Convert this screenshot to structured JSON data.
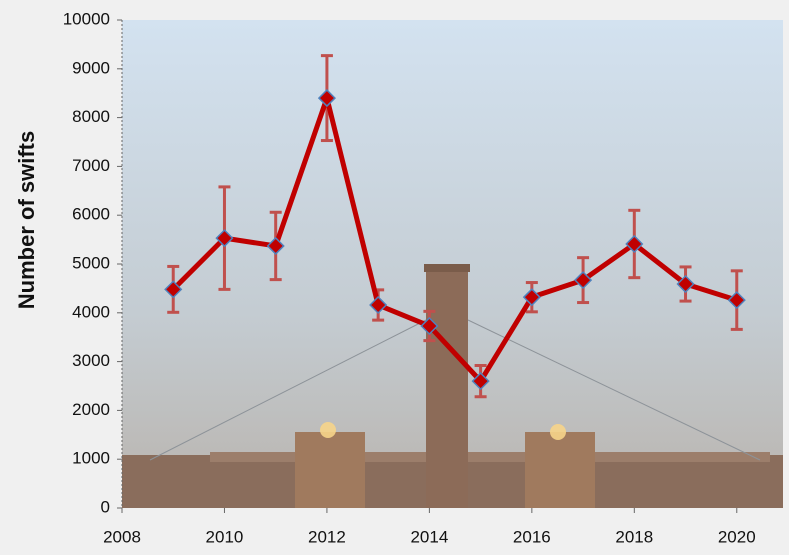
{
  "chart_data": {
    "type": "line",
    "y_label": "Number of swifts",
    "x": [
      2009,
      2010,
      2011,
      2012,
      2013,
      2014,
      2015,
      2016,
      2017,
      2018,
      2019,
      2020
    ],
    "values": [
      4480,
      5530,
      5370,
      8400,
      4160,
      3730,
      2600,
      4320,
      4670,
      5410,
      4590,
      4260
    ],
    "errors": [
      470,
      1050,
      690,
      870,
      310,
      300,
      320,
      300,
      460,
      690,
      350,
      600
    ],
    "color": "#c00000",
    "marker_edge_color": "#4f81bd",
    "error_color": "#c0504d",
    "xlim": [
      2008,
      2021
    ],
    "xticks": [
      2008,
      2010,
      2012,
      2014,
      2016,
      2018,
      2020
    ],
    "ylim": [
      0,
      10000
    ],
    "yticks": [
      0,
      1000,
      2000,
      3000,
      4000,
      5000,
      6000,
      7000,
      8000,
      9000,
      10000
    ]
  }
}
